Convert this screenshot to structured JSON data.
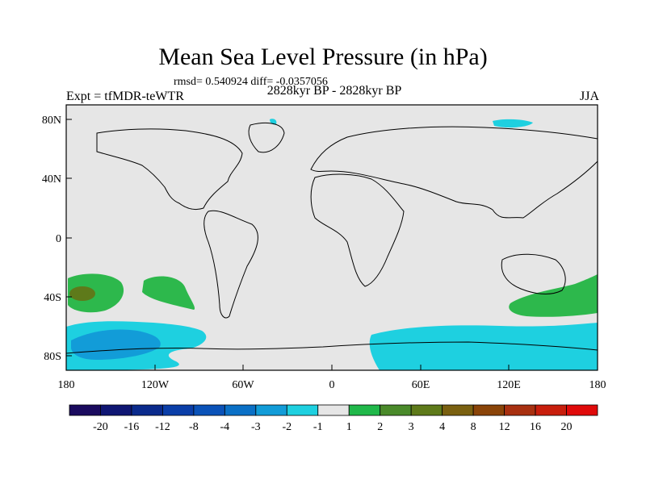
{
  "title": "Mean Sea Level Pressure (in hPa)",
  "stats": "rmsd= 0.540924 diff= -0.0357056",
  "experiment": "Expt = tfMDR-teWTR",
  "period": "2828kyr BP - 2828kyr BP",
  "season": "JJA",
  "axes": {
    "lat_labels": [
      "80N",
      "40N",
      "0",
      "40S",
      "80S"
    ],
    "lon_labels": [
      "180",
      "120W",
      "60W",
      "0",
      "60E",
      "120E",
      "180"
    ]
  },
  "colorbar": {
    "labels": [
      "-20",
      "-16",
      "-12",
      "-8",
      "-4",
      "-3",
      "-2",
      "-1",
      "1",
      "2",
      "3",
      "4",
      "8",
      "12",
      "16",
      "20"
    ],
    "colors": [
      "#1a0a5e",
      "#0f1673",
      "#0a2a8c",
      "#0a3ea8",
      "#0a52b8",
      "#0a70c6",
      "#129cd8",
      "#1ed0e0",
      "#e6e6e6",
      "#20b84a",
      "#4a8a2a",
      "#5e7a1a",
      "#7a6010",
      "#8a4408",
      "#a83010",
      "#c81e0c",
      "#e00a0a"
    ]
  },
  "colors": {
    "background": "#e6e6e6",
    "positive_1": "#2db84c",
    "negative_1": "#1ed0e0",
    "negative_2": "#129cd8",
    "positive_3": "#5e7a1a"
  }
}
